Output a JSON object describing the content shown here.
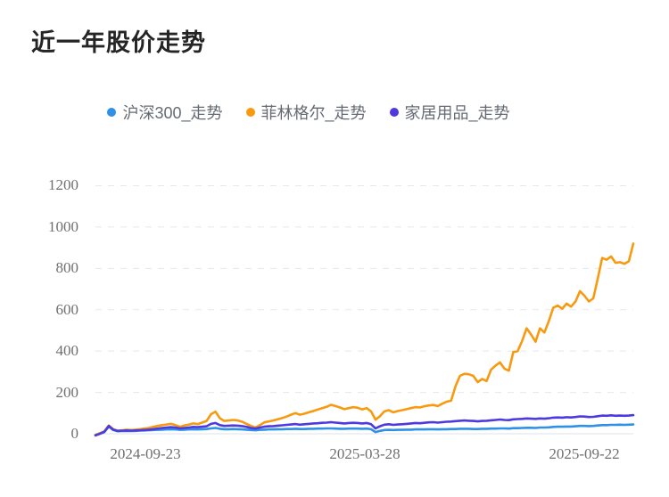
{
  "title": "近一年股价走势",
  "chart_data": {
    "type": "line",
    "title": "近一年股价走势",
    "xlabel": "",
    "ylabel": "",
    "ylim": [
      0,
      1200
    ],
    "y_ticks": [
      0,
      200,
      400,
      600,
      800,
      1000,
      1200
    ],
    "x_tick_labels": [
      "2024-09-23",
      "2025-03-28",
      "2025-09-22"
    ],
    "grid": "horizontal-dashed",
    "legend_position": "top-center",
    "background_color": "#ffffff",
    "grid_color": "#e6e8ee",
    "axis_line_color": "#dfe2e8",
    "axis_text_color": "#6f6f6f",
    "series": [
      {
        "name": "沪深300_走势",
        "color": "#2f90e8",
        "values": [
          -5,
          0,
          8,
          35,
          18,
          12,
          13,
          14,
          13,
          14,
          15,
          16,
          17,
          18,
          19,
          20,
          21,
          22,
          21,
          19,
          20,
          21,
          22,
          21,
          22,
          23,
          26,
          28,
          24,
          22,
          22,
          23,
          22,
          21,
          20,
          18,
          17,
          19,
          20,
          21,
          21,
          22,
          22,
          23,
          23,
          24,
          23,
          23,
          24,
          24,
          25,
          25,
          26,
          26,
          25,
          24,
          24,
          25,
          25,
          25,
          24,
          25,
          22,
          8,
          14,
          18,
          19,
          18,
          19,
          19,
          20,
          20,
          21,
          21,
          21,
          22,
          22,
          21,
          22,
          22,
          23,
          23,
          24,
          24,
          24,
          23,
          23,
          24,
          24,
          25,
          25,
          26,
          26,
          25,
          27,
          27,
          28,
          29,
          29,
          28,
          30,
          30,
          31,
          33,
          34,
          34,
          35,
          35,
          36,
          38,
          38,
          37,
          38,
          40,
          42,
          42,
          43,
          43,
          44,
          43,
          44,
          45
        ]
      },
      {
        "name": "菲林格尔_走势",
        "color": "#f79a0f",
        "values": [
          -5,
          3,
          12,
          40,
          22,
          15,
          17,
          20,
          18,
          20,
          22,
          25,
          28,
          33,
          38,
          42,
          45,
          48,
          42,
          34,
          40,
          44,
          50,
          47,
          54,
          62,
          95,
          107,
          75,
          62,
          64,
          67,
          64,
          58,
          48,
          38,
          30,
          42,
          55,
          60,
          64,
          70,
          76,
          83,
          92,
          100,
          92,
          97,
          104,
          110,
          117,
          124,
          130,
          140,
          134,
          127,
          119,
          124,
          129,
          126,
          118,
          124,
          108,
          68,
          85,
          108,
          114,
          104,
          110,
          114,
          119,
          124,
          129,
          127,
          133,
          137,
          139,
          134,
          145,
          155,
          160,
          230,
          280,
          290,
          288,
          280,
          250,
          265,
          255,
          310,
          330,
          345,
          315,
          305,
          395,
          400,
          450,
          510,
          480,
          445,
          510,
          490,
          545,
          610,
          620,
          605,
          630,
          615,
          640,
          690,
          668,
          640,
          655,
          750,
          850,
          842,
          858,
          827,
          830,
          822,
          835,
          920
        ]
      },
      {
        "name": "家居用品_走势",
        "color": "#4c3ae0",
        "values": [
          -8,
          0,
          10,
          38,
          20,
          14,
          15,
          16,
          15,
          16,
          17,
          18,
          20,
          22,
          25,
          28,
          30,
          32,
          30,
          26,
          28,
          30,
          33,
          32,
          34,
          36,
          48,
          52,
          42,
          38,
          39,
          40,
          39,
          37,
          33,
          28,
          25,
          30,
          34,
          36,
          37,
          39,
          41,
          43,
          45,
          47,
          44,
          46,
          48,
          50,
          51,
          53,
          54,
          56,
          54,
          52,
          50,
          52,
          53,
          52,
          50,
          52,
          46,
          26,
          36,
          44,
          46,
          43,
          45,
          46,
          48,
          50,
          52,
          51,
          53,
          55,
          56,
          54,
          56,
          58,
          59,
          61,
          63,
          64,
          63,
          62,
          60,
          62,
          63,
          65,
          67,
          69,
          67,
          66,
          70,
          71,
          72,
          74,
          73,
          72,
          74,
          73,
          75,
          78,
          79,
          78,
          80,
          79,
          81,
          84,
          83,
          81,
          82,
          85,
          88,
          87,
          89,
          87,
          88,
          87,
          88,
          90
        ]
      }
    ]
  }
}
